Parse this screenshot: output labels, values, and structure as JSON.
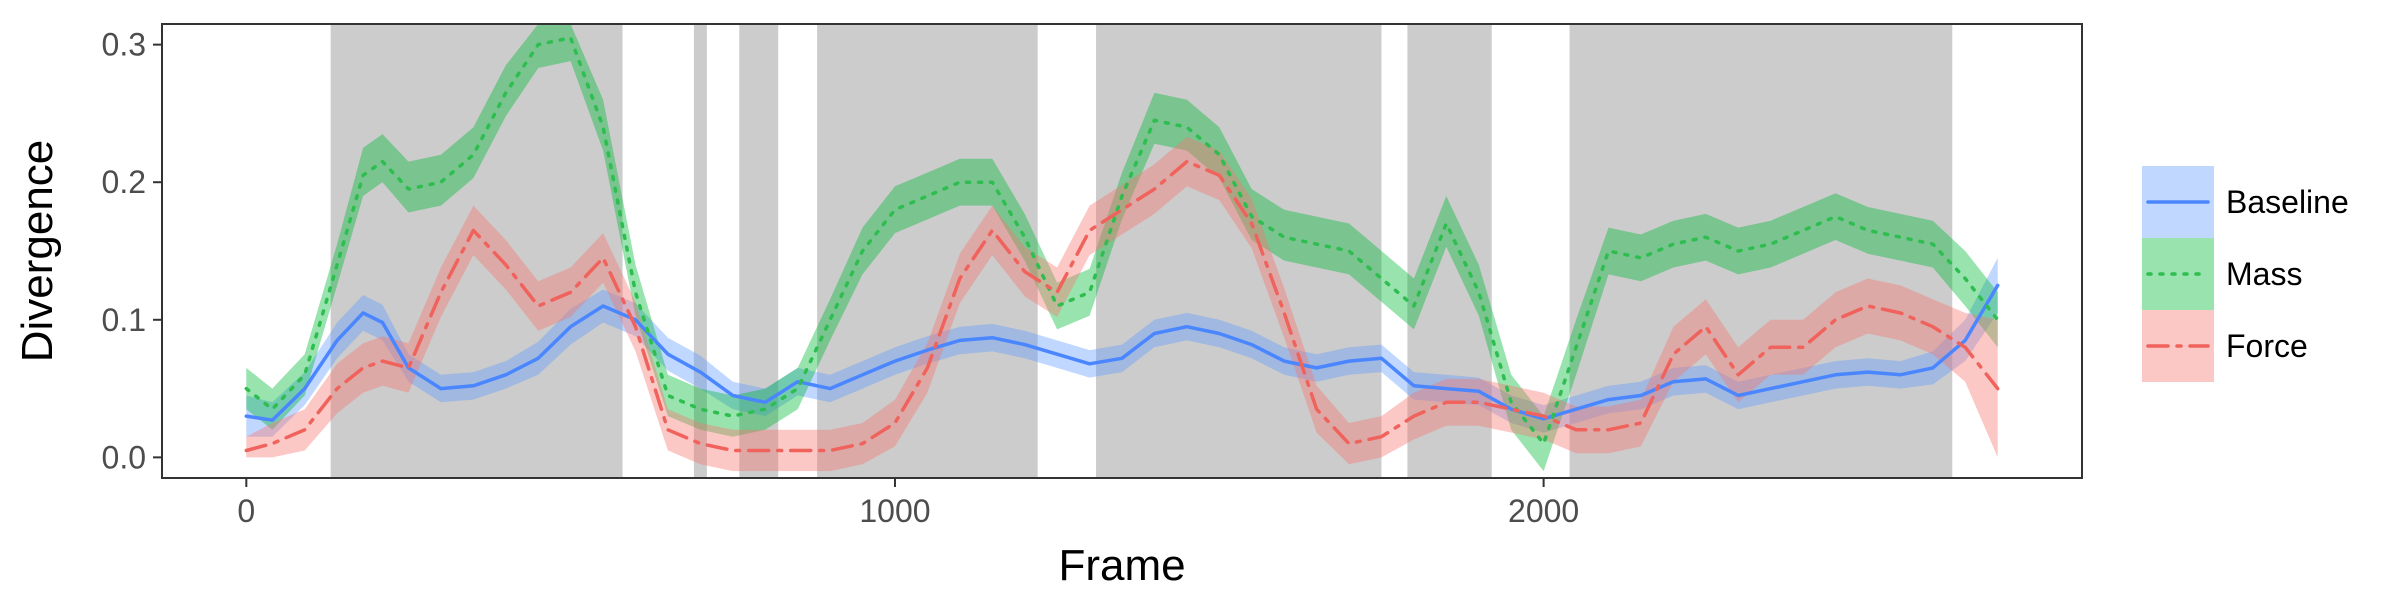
{
  "chart_data": {
    "type": "line",
    "xlabel": "Frame",
    "ylabel": "Divergence",
    "xlim": [
      -130,
      2830
    ],
    "ylim": [
      -0.015,
      0.315
    ],
    "xticks": [
      0,
      1000,
      2000
    ],
    "xtick_labels": [
      "0",
      "1000",
      "2000"
    ],
    "yticks": [
      0.0,
      0.1,
      0.2,
      0.3
    ],
    "ytick_labels": [
      "0.0",
      "0.1",
      "0.2",
      "0.3"
    ],
    "grid": false,
    "legend_position": "right",
    "shaded_regions": [
      [
        130,
        580
      ],
      [
        690,
        710
      ],
      [
        760,
        820
      ],
      [
        880,
        1220
      ],
      [
        1310,
        1750
      ],
      [
        1790,
        1920
      ],
      [
        2040,
        2630
      ]
    ],
    "shade_color": "#cccccc",
    "series": [
      {
        "name": "Baseline",
        "color": "#619cff",
        "line_color": "#4a86ff",
        "dash": "solid",
        "x": [
          0,
          40,
          90,
          140,
          180,
          210,
          250,
          300,
          350,
          400,
          450,
          500,
          550,
          600,
          650,
          700,
          750,
          800,
          850,
          900,
          950,
          1000,
          1050,
          1100,
          1150,
          1200,
          1250,
          1300,
          1350,
          1400,
          1450,
          1500,
          1550,
          1600,
          1650,
          1700,
          1750,
          1800,
          1850,
          1900,
          1950,
          2000,
          2050,
          2100,
          2150,
          2200,
          2250,
          2300,
          2350,
          2400,
          2450,
          2500,
          2550,
          2600,
          2650,
          2700
        ],
        "y": [
          0.03,
          0.027,
          0.05,
          0.085,
          0.105,
          0.098,
          0.065,
          0.05,
          0.052,
          0.06,
          0.072,
          0.095,
          0.11,
          0.1,
          0.075,
          0.062,
          0.045,
          0.04,
          0.055,
          0.05,
          0.06,
          0.07,
          0.078,
          0.085,
          0.087,
          0.082,
          0.075,
          0.068,
          0.072,
          0.09,
          0.095,
          0.09,
          0.082,
          0.07,
          0.065,
          0.07,
          0.072,
          0.052,
          0.05,
          0.048,
          0.035,
          0.028,
          0.035,
          0.042,
          0.045,
          0.055,
          0.057,
          0.045,
          0.05,
          0.055,
          0.06,
          0.062,
          0.06,
          0.065,
          0.085,
          0.125
        ],
        "lower": [
          0.015,
          0.015,
          0.038,
          0.072,
          0.092,
          0.085,
          0.055,
          0.04,
          0.042,
          0.05,
          0.06,
          0.082,
          0.098,
          0.088,
          0.063,
          0.05,
          0.035,
          0.03,
          0.045,
          0.04,
          0.05,
          0.06,
          0.068,
          0.075,
          0.077,
          0.072,
          0.065,
          0.058,
          0.062,
          0.08,
          0.085,
          0.08,
          0.072,
          0.06,
          0.055,
          0.06,
          0.062,
          0.042,
          0.04,
          0.038,
          0.025,
          0.018,
          0.025,
          0.032,
          0.035,
          0.045,
          0.047,
          0.035,
          0.04,
          0.045,
          0.05,
          0.052,
          0.05,
          0.053,
          0.07,
          0.105
        ],
        "upper": [
          0.045,
          0.04,
          0.062,
          0.098,
          0.118,
          0.111,
          0.075,
          0.06,
          0.062,
          0.07,
          0.084,
          0.108,
          0.122,
          0.112,
          0.087,
          0.074,
          0.055,
          0.05,
          0.065,
          0.06,
          0.07,
          0.08,
          0.088,
          0.095,
          0.097,
          0.092,
          0.085,
          0.078,
          0.082,
          0.1,
          0.105,
          0.1,
          0.092,
          0.08,
          0.075,
          0.08,
          0.082,
          0.062,
          0.06,
          0.058,
          0.045,
          0.038,
          0.045,
          0.052,
          0.055,
          0.065,
          0.067,
          0.055,
          0.06,
          0.065,
          0.07,
          0.072,
          0.07,
          0.077,
          0.1,
          0.145
        ]
      },
      {
        "name": "Mass",
        "color": "#00ba38",
        "line_color": "#2ebd4f",
        "dash": "dotted",
        "x": [
          0,
          40,
          90,
          140,
          180,
          210,
          250,
          300,
          350,
          400,
          450,
          500,
          550,
          600,
          650,
          700,
          750,
          800,
          850,
          900,
          950,
          1000,
          1050,
          1100,
          1150,
          1200,
          1250,
          1300,
          1350,
          1400,
          1450,
          1500,
          1550,
          1600,
          1650,
          1700,
          1750,
          1800,
          1850,
          1900,
          1950,
          2000,
          2050,
          2100,
          2150,
          2200,
          2250,
          2300,
          2350,
          2400,
          2450,
          2500,
          2550,
          2600,
          2650,
          2700
        ],
        "y": [
          0.05,
          0.035,
          0.06,
          0.14,
          0.205,
          0.215,
          0.195,
          0.2,
          0.22,
          0.265,
          0.3,
          0.305,
          0.24,
          0.12,
          0.045,
          0.035,
          0.03,
          0.035,
          0.05,
          0.1,
          0.15,
          0.18,
          0.19,
          0.2,
          0.2,
          0.16,
          0.11,
          0.12,
          0.19,
          0.245,
          0.24,
          0.22,
          0.175,
          0.16,
          0.155,
          0.15,
          0.13,
          0.11,
          0.17,
          0.12,
          0.04,
          0.01,
          0.08,
          0.15,
          0.145,
          0.155,
          0.16,
          0.15,
          0.155,
          0.165,
          0.175,
          0.165,
          0.16,
          0.155,
          0.13,
          0.1
        ],
        "lower": [
          0.035,
          0.02,
          0.045,
          0.125,
          0.19,
          0.2,
          0.178,
          0.183,
          0.203,
          0.248,
          0.283,
          0.288,
          0.223,
          0.103,
          0.03,
          0.02,
          0.015,
          0.02,
          0.035,
          0.085,
          0.133,
          0.163,
          0.173,
          0.183,
          0.183,
          0.143,
          0.093,
          0.103,
          0.173,
          0.228,
          0.223,
          0.203,
          0.158,
          0.143,
          0.138,
          0.133,
          0.113,
          0.093,
          0.153,
          0.103,
          0.02,
          -0.01,
          0.06,
          0.133,
          0.128,
          0.138,
          0.143,
          0.133,
          0.138,
          0.148,
          0.158,
          0.148,
          0.143,
          0.138,
          0.11,
          0.08
        ],
        "upper": [
          0.065,
          0.05,
          0.075,
          0.155,
          0.225,
          0.235,
          0.215,
          0.22,
          0.24,
          0.285,
          0.32,
          0.325,
          0.26,
          0.14,
          0.06,
          0.05,
          0.045,
          0.05,
          0.065,
          0.115,
          0.167,
          0.197,
          0.207,
          0.217,
          0.217,
          0.177,
          0.127,
          0.137,
          0.207,
          0.265,
          0.26,
          0.24,
          0.195,
          0.18,
          0.175,
          0.17,
          0.15,
          0.13,
          0.19,
          0.14,
          0.06,
          0.03,
          0.1,
          0.167,
          0.162,
          0.172,
          0.177,
          0.167,
          0.172,
          0.182,
          0.192,
          0.182,
          0.177,
          0.172,
          0.15,
          0.12
        ]
      },
      {
        "name": "Force",
        "color": "#f8766d",
        "line_color": "#f0625c",
        "dash": "dashdot",
        "x": [
          0,
          40,
          90,
          140,
          180,
          210,
          250,
          300,
          350,
          400,
          450,
          500,
          550,
          600,
          650,
          700,
          750,
          800,
          850,
          900,
          950,
          1000,
          1050,
          1100,
          1150,
          1200,
          1250,
          1300,
          1350,
          1400,
          1450,
          1500,
          1550,
          1600,
          1650,
          1700,
          1750,
          1800,
          1850,
          1900,
          1950,
          2000,
          2050,
          2100,
          2150,
          2200,
          2250,
          2300,
          2350,
          2400,
          2450,
          2500,
          2550,
          2600,
          2650,
          2700
        ],
        "y": [
          0.005,
          0.01,
          0.02,
          0.05,
          0.065,
          0.07,
          0.065,
          0.12,
          0.165,
          0.14,
          0.11,
          0.12,
          0.145,
          0.095,
          0.02,
          0.01,
          0.005,
          0.005,
          0.005,
          0.005,
          0.01,
          0.025,
          0.065,
          0.13,
          0.165,
          0.135,
          0.12,
          0.165,
          0.18,
          0.195,
          0.215,
          0.205,
          0.17,
          0.105,
          0.035,
          0.01,
          0.015,
          0.03,
          0.04,
          0.04,
          0.035,
          0.03,
          0.02,
          0.02,
          0.025,
          0.075,
          0.095,
          0.06,
          0.08,
          0.08,
          0.1,
          0.11,
          0.105,
          0.095,
          0.08,
          0.05
        ],
        "lower": [
          0.0,
          0.0,
          0.005,
          0.032,
          0.047,
          0.052,
          0.047,
          0.102,
          0.147,
          0.122,
          0.092,
          0.102,
          0.127,
          0.077,
          0.005,
          -0.005,
          -0.01,
          -0.01,
          -0.01,
          -0.01,
          -0.005,
          0.008,
          0.047,
          0.112,
          0.147,
          0.117,
          0.102,
          0.147,
          0.162,
          0.177,
          0.197,
          0.187,
          0.152,
          0.087,
          0.018,
          -0.005,
          0.0,
          0.013,
          0.023,
          0.023,
          0.018,
          0.013,
          0.003,
          0.003,
          0.008,
          0.055,
          0.075,
          0.04,
          0.06,
          0.06,
          0.08,
          0.09,
          0.085,
          0.075,
          0.055,
          0.0
        ],
        "upper": [
          0.015,
          0.025,
          0.035,
          0.068,
          0.083,
          0.088,
          0.083,
          0.138,
          0.183,
          0.158,
          0.128,
          0.138,
          0.163,
          0.113,
          0.035,
          0.025,
          0.02,
          0.02,
          0.02,
          0.02,
          0.025,
          0.042,
          0.083,
          0.148,
          0.183,
          0.153,
          0.138,
          0.183,
          0.198,
          0.213,
          0.233,
          0.223,
          0.188,
          0.123,
          0.052,
          0.025,
          0.03,
          0.047,
          0.057,
          0.057,
          0.052,
          0.047,
          0.037,
          0.037,
          0.042,
          0.095,
          0.115,
          0.08,
          0.1,
          0.1,
          0.12,
          0.13,
          0.125,
          0.115,
          0.105,
          0.1
        ]
      }
    ]
  }
}
